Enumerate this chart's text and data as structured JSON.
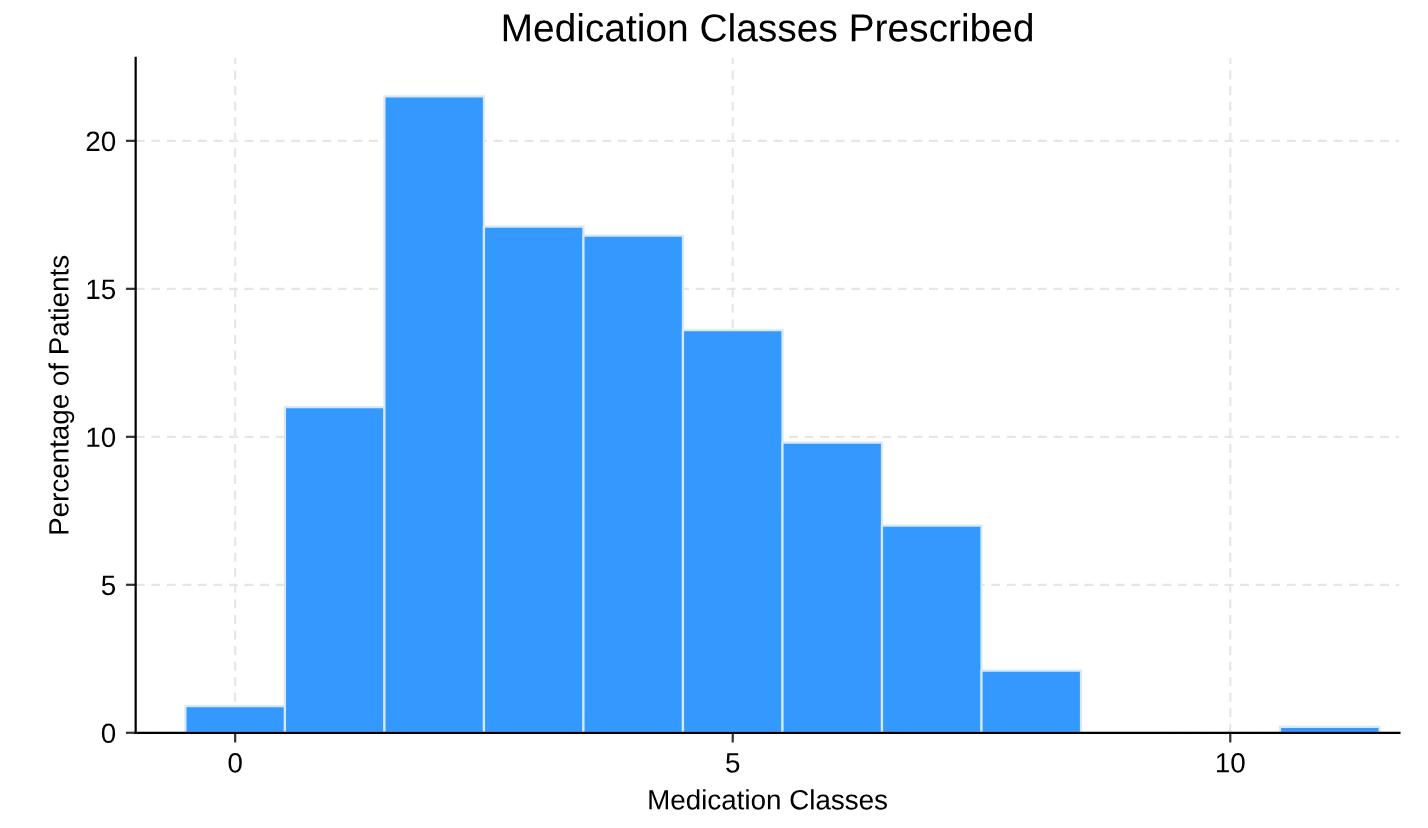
{
  "chart_data": {
    "type": "histogram",
    "title": "Medication Classes Prescribed",
    "xlabel": "Medication Classes",
    "ylabel": "Percentage of Patients",
    "bins": [
      -0.5,
      0.5,
      1.5,
      2.5,
      3.5,
      4.5,
      5.5,
      6.5,
      7.5,
      8.5,
      9.5,
      10.5,
      11.5
    ],
    "values": [
      0.9,
      11,
      21.5,
      17.1,
      16.8,
      13.6,
      9.8,
      7,
      2.1,
      0,
      0,
      0.2
    ],
    "color": "#3399ff",
    "xlim": [
      -1,
      11.7
    ],
    "ylim": [
      0,
      22.8
    ],
    "xticks": [
      0,
      5,
      10
    ],
    "yticks": [
      0,
      5,
      10,
      15,
      20
    ],
    "grid": true
  }
}
